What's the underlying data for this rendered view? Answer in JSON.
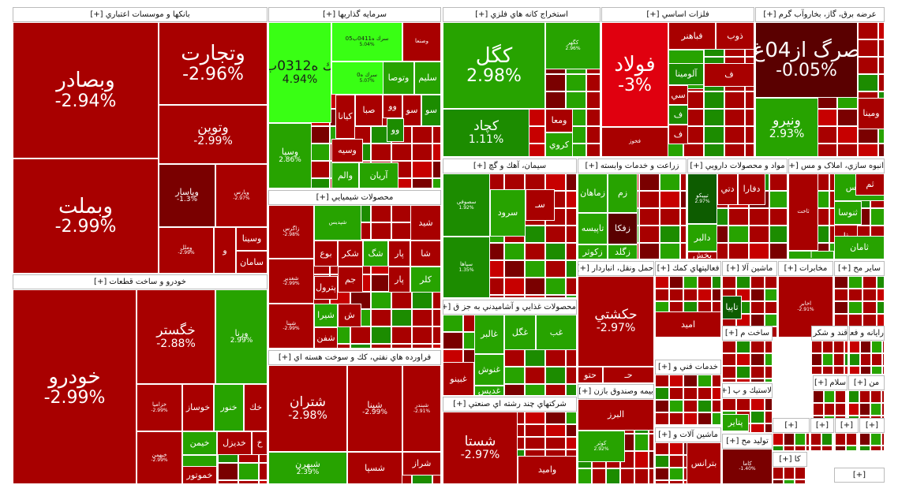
{
  "colors": {
    "deep_red": "#a80000",
    "red": "#c70000",
    "bright_red": "#e0000f",
    "dark_red": "#7a0000",
    "maroon": "#5a0000",
    "green": "#27a300",
    "mid_green": "#1c8c00",
    "dark_green": "#0d5c00",
    "lime": "#39ff14",
    "header_bg": "#ffffff"
  },
  "sectors": [
    {
      "id": "banks",
      "title": "بانکها و موسسات اعتباري [+]"
    },
    {
      "id": "invest",
      "title": "سرمايه گذاريها [+]"
    },
    {
      "id": "mining",
      "title": "استخراج كانه هاي فلزي [+]"
    },
    {
      "id": "metals",
      "title": "فلزات اساسي [+]"
    },
    {
      "id": "utilities",
      "title": "عرضه برق، گاز، بخاروآب گرم [+]"
    },
    {
      "id": "auto",
      "title": "خودرو و ساخت قطعات [+]"
    },
    {
      "id": "chemicals",
      "title": "محصولات شيميايي [+]"
    },
    {
      "id": "cement",
      "title": "سيمان، آهك و گچ [+]"
    },
    {
      "id": "agri",
      "title": "زراعت و خدمات وابسته [+]"
    },
    {
      "id": "pharma",
      "title": "مواد و محصولات دارويي [+]"
    },
    {
      "id": "realestate",
      "title": "انبوه سازي، املاک و مس [+]"
    },
    {
      "id": "refinery",
      "title": "فراورده هاي نفتي، كك و سوخت هسته اي [+]"
    },
    {
      "id": "food",
      "title": "محصولات غذايي و آشاميدني به جز ق [+]"
    },
    {
      "id": "transport",
      "title": "حمل ونقل، انباردار [+]"
    },
    {
      "id": "support",
      "title": "فعاليتهاي كمك [+]"
    },
    {
      "id": "machinery",
      "title": "ماشين آلا [+]"
    },
    {
      "id": "telecom",
      "title": "مخابرات [+]"
    },
    {
      "id": "other",
      "title": "ساير مح [+]"
    },
    {
      "id": "multi",
      "title": "شركتهاي چند رشته اي صنعتي [+]"
    },
    {
      "id": "tech",
      "title": "خدمات فني و [+]"
    },
    {
      "id": "fund",
      "title": "بيمه وصندوق بازن [+]"
    },
    {
      "id": "sugar",
      "title": "قند و شكر [+]"
    },
    {
      "id": "computer",
      "title": "رايانه و فعا [+]"
    },
    {
      "id": "manuf",
      "title": "ساخت م [+]"
    },
    {
      "id": "rubber",
      "title": "لاستيك و پ [+]"
    },
    {
      "id": "islam",
      "title": "سلام [+]"
    },
    {
      "id": "min2",
      "title": "من [+]"
    },
    {
      "id": "machine2",
      "title": "ماشين آلات و [+]"
    },
    {
      "id": "produce",
      "title": "توليد مح [+]"
    },
    {
      "id": "ka",
      "title": "كا [+]"
    },
    {
      "id": "s1",
      "title": "[+]"
    },
    {
      "id": "s2",
      "title": "[+]"
    },
    {
      "id": "s3",
      "title": "[+]"
    },
    {
      "id": "s4",
      "title": "[+]"
    },
    {
      "id": "s5",
      "title": "[+]"
    }
  ],
  "tiles": [
    {
      "name": "وبصادر",
      "pct": "-2.94%",
      "color": "deep_red",
      "size": "big"
    },
    {
      "name": "وتجارت",
      "pct": "-2.96%",
      "color": "deep_red",
      "size": "big"
    },
    {
      "name": "وتوين",
      "pct": "-2.99%",
      "color": "deep_red",
      "size": "med"
    },
    {
      "name": "وبملت",
      "pct": "-2.99%",
      "color": "deep_red",
      "size": "big"
    },
    {
      "name": "وپاسار",
      "pct": "-1.3%",
      "color": "dark_red",
      "size": "small"
    },
    {
      "name": "وپارس",
      "pct": "-2.97%",
      "color": "deep_red",
      "size": "tiny"
    },
    {
      "name": "وملل",
      "pct": "-2.99%",
      "color": "deep_red",
      "size": "tiny"
    },
    {
      "name": "و",
      "pct": "",
      "color": "deep_red",
      "size": "small"
    },
    {
      "name": "وسينا",
      "pct": "",
      "color": "deep_red",
      "size": "small"
    },
    {
      "name": "سامان",
      "pct": "",
      "color": "deep_red",
      "size": "small"
    },
    {
      "name": "سرك ه0312ب01",
      "pct": "4.94%",
      "color": "lime",
      "size": "med",
      "dark": true
    },
    {
      "name": "سرك ه0411ب05",
      "pct": "5.04%",
      "color": "lime",
      "size": "tiny",
      "dark": true
    },
    {
      "name": "سرك ه0",
      "pct": "5.07%",
      "color": "lime",
      "size": "tiny",
      "dark": true
    },
    {
      "name": "وصنعا",
      "pct": "",
      "color": "deep_red",
      "size": "tiny"
    },
    {
      "name": "وتوصا",
      "pct": "",
      "color": "green",
      "size": "small"
    },
    {
      "name": "سليم",
      "pct": "",
      "color": "green",
      "size": "small"
    },
    {
      "name": "وسپا",
      "pct": "2.86%",
      "color": "green",
      "size": "small"
    },
    {
      "name": "كيانا",
      "pct": "",
      "color": "deep_red",
      "size": "small"
    },
    {
      "name": "صبا",
      "pct": "",
      "color": "deep_red",
      "size": "small"
    },
    {
      "name": "وسيه",
      "pct": "",
      "color": "deep_red",
      "size": "small"
    },
    {
      "name": "وو",
      "pct": "",
      "color": "deep_red",
      "size": "small"
    },
    {
      "name": "سو",
      "pct": "",
      "color": "deep_red",
      "size": "small"
    },
    {
      "name": "وو",
      "pct": "",
      "color": "mid_green",
      "size": "small"
    },
    {
      "name": "سو",
      "pct": "",
      "color": "mid_green",
      "size": "small"
    },
    {
      "name": "آريان",
      "pct": "",
      "color": "green",
      "size": "small"
    },
    {
      "name": "والم",
      "pct": "",
      "color": "green",
      "size": "small"
    },
    {
      "name": "كگل",
      "pct": "2.98%",
      "color": "green",
      "size": "big"
    },
    {
      "name": "كگهر",
      "pct": "2.96%",
      "color": "green",
      "size": "tiny"
    },
    {
      "name": "كچاد",
      "pct": "1.11%",
      "color": "mid_green",
      "size": "med"
    },
    {
      "name": "ومعا",
      "pct": "",
      "color": "deep_red",
      "size": "small"
    },
    {
      "name": "كروي",
      "pct": "",
      "color": "green",
      "size": "small"
    },
    {
      "name": "فولاد",
      "pct": "-3%",
      "color": "bright_red",
      "size": "big"
    },
    {
      "name": "فباهنر",
      "pct": "",
      "color": "deep_red",
      "size": "small"
    },
    {
      "name": "ذوب",
      "pct": "",
      "color": "deep_red",
      "size": "small"
    },
    {
      "name": "فملي",
      "pct": "",
      "color": "green",
      "size": "small"
    },
    {
      "name": "آلومينا",
      "pct": "",
      "color": "mid_green",
      "size": "small"
    },
    {
      "name": "ف",
      "pct": "",
      "color": "deep_red",
      "size": "small"
    },
    {
      "name": "سي",
      "pct": "",
      "color": "deep_red",
      "size": "small"
    },
    {
      "name": "ف",
      "pct": "",
      "color": "mid_green",
      "size": "small"
    },
    {
      "name": "ف",
      "pct": "",
      "color": "deep_red",
      "size": "small"
    },
    {
      "name": "فخوز",
      "pct": "",
      "color": "deep_red",
      "size": "tiny"
    },
    {
      "name": "صرگ از04غ",
      "pct": "-0.05%",
      "color": "maroon",
      "size": "big"
    },
    {
      "name": "ونيرو",
      "pct": "2.93%",
      "color": "green",
      "size": "med"
    },
    {
      "name": "ومينا",
      "pct": "",
      "color": "deep_red",
      "size": "small"
    },
    {
      "name": "خودرو",
      "pct": "-2.99%",
      "color": "deep_red",
      "size": "big"
    },
    {
      "name": "خگستر",
      "pct": "-2.88%",
      "color": "deep_red",
      "size": "med"
    },
    {
      "name": "ورنا",
      "pct": "2.99%",
      "color": "green",
      "size": "small"
    },
    {
      "name": "خوساز",
      "pct": "",
      "color": "deep_red",
      "size": "small"
    },
    {
      "name": "خنور",
      "pct": "",
      "color": "green",
      "size": "small"
    },
    {
      "name": "خك",
      "pct": "",
      "color": "deep_red",
      "size": "small"
    },
    {
      "name": "خزاميا",
      "pct": "-2.99%",
      "color": "deep_red",
      "size": "tiny"
    },
    {
      "name": "خيمن",
      "pct": "",
      "color": "green",
      "size": "small"
    },
    {
      "name": "خديزل",
      "pct": "",
      "color": "deep_red",
      "size": "small"
    },
    {
      "name": "خ",
      "pct": "",
      "color": "deep_red",
      "size": "small"
    },
    {
      "name": "خبهمن",
      "pct": "-2.99%",
      "color": "deep_red",
      "size": "tiny"
    },
    {
      "name": "خريخت",
      "pct": "",
      "color": "green",
      "size": "small"
    },
    {
      "name": "خموتور",
      "pct": "",
      "color": "deep_red",
      "size": "small"
    },
    {
      "name": "زاگرس",
      "pct": "-2.98%",
      "color": "deep_red",
      "size": "tiny"
    },
    {
      "name": "شپديس",
      "pct": "",
      "color": "green",
      "size": "tiny"
    },
    {
      "name": "شيد",
      "pct": "",
      "color": "deep_red",
      "size": "small"
    },
    {
      "name": "بوع",
      "pct": "",
      "color": "deep_red",
      "size": "small"
    },
    {
      "name": "شكر",
      "pct": "",
      "color": "deep_red",
      "size": "small"
    },
    {
      "name": "شگ",
      "pct": "",
      "color": "green",
      "size": "small"
    },
    {
      "name": "پار",
      "pct": "",
      "color": "deep_red",
      "size": "small"
    },
    {
      "name": "شا",
      "pct": "",
      "color": "deep_red",
      "size": "small"
    },
    {
      "name": "پار",
      "pct": "",
      "color": "deep_red",
      "size": "small"
    },
    {
      "name": "كلر",
      "pct": "",
      "color": "green",
      "size": "small"
    },
    {
      "name": "پترول",
      "pct": "",
      "color": "deep_red",
      "size": "small"
    },
    {
      "name": "جم",
      "pct": "",
      "color": "deep_red",
      "size": "small"
    },
    {
      "name": "شپنا",
      "pct": "-2.99%",
      "color": "deep_red",
      "size": "tiny"
    },
    {
      "name": "شيرا",
      "pct": "",
      "color": "green",
      "size": "small"
    },
    {
      "name": "ش",
      "pct": "",
      "color": "deep_red",
      "size": "small"
    },
    {
      "name": "شغدير",
      "pct": "-2.99%",
      "color": "deep_red",
      "size": "tiny"
    },
    {
      "name": "شفن",
      "pct": "",
      "color": "deep_red",
      "size": "small"
    },
    {
      "name": "سصوفي",
      "pct": "1.92%",
      "color": "mid_green",
      "size": "tiny"
    },
    {
      "name": "سرود",
      "pct": "",
      "color": "green",
      "size": "small"
    },
    {
      "name": "سـ",
      "pct": "",
      "color": "deep_red",
      "size": "small"
    },
    {
      "name": "سپاها",
      "pct": "1.35%",
      "color": "mid_green",
      "size": "tiny"
    },
    {
      "name": "زماهان",
      "pct": "",
      "color": "green",
      "size": "small"
    },
    {
      "name": "زم",
      "pct": "",
      "color": "green",
      "size": "small"
    },
    {
      "name": "تاپيسه",
      "pct": "",
      "color": "green",
      "size": "small"
    },
    {
      "name": "زفكا",
      "pct": "",
      "color": "maroon",
      "size": "small"
    },
    {
      "name": "زكوثر",
      "pct": "",
      "color": "green",
      "size": "small"
    },
    {
      "name": "زگلد",
      "pct": "",
      "color": "green",
      "size": "small"
    },
    {
      "name": "تيپيكو",
      "pct": "2.97%",
      "color": "dark_green",
      "size": "tiny"
    },
    {
      "name": "دتي",
      "pct": "",
      "color": "deep_red",
      "size": "small"
    },
    {
      "name": "دفارا",
      "pct": "",
      "color": "deep_red",
      "size": "small"
    },
    {
      "name": "دالبر",
      "pct": "",
      "color": "green",
      "size": "small"
    },
    {
      "name": "پخش",
      "pct": "",
      "color": "deep_red",
      "size": "small"
    },
    {
      "name": "ثاخت",
      "pct": "",
      "color": "deep_red",
      "size": "tiny"
    },
    {
      "name": "تپرديس",
      "pct": "",
      "color": "green",
      "size": "small"
    },
    {
      "name": "ثم",
      "pct": "",
      "color": "deep_red",
      "size": "small"
    },
    {
      "name": "ثنوسا",
      "pct": "",
      "color": "green",
      "size": "small"
    },
    {
      "name": "ثا",
      "pct": "",
      "color": "deep_red",
      "size": "small"
    },
    {
      "name": "ثامان",
      "pct": "",
      "color": "green",
      "size": "small"
    },
    {
      "name": "آ",
      "pct": "",
      "color": "green",
      "size": "small"
    },
    {
      "name": "شتران",
      "pct": "-2.98%",
      "color": "deep_red",
      "size": "med"
    },
    {
      "name": "شپنا",
      "pct": "-2.99%",
      "color": "deep_red",
      "size": "small"
    },
    {
      "name": "شبندر",
      "pct": "-2.91%",
      "color": "deep_red",
      "size": "tiny"
    },
    {
      "name": "شبهرن",
      "pct": "2.39%",
      "color": "green",
      "size": "small"
    },
    {
      "name": "شسپا",
      "pct": "",
      "color": "deep_red",
      "size": "small"
    },
    {
      "name": "شراز",
      "pct": "",
      "color": "deep_red",
      "size": "small"
    },
    {
      "name": "غالبر",
      "pct": "",
      "color": "green",
      "size": "small"
    },
    {
      "name": "غگل",
      "pct": "",
      "color": "green",
      "size": "small"
    },
    {
      "name": "غب",
      "pct": "",
      "color": "green",
      "size": "small"
    },
    {
      "name": "غنوش",
      "pct": "",
      "color": "green",
      "size": "small"
    },
    {
      "name": "غديس",
      "pct": "",
      "color": "green",
      "size": "small"
    },
    {
      "name": "غبينو",
      "pct": "",
      "color": "deep_red",
      "size": "small"
    },
    {
      "name": "حكشتي",
      "pct": "-2.97%",
      "color": "deep_red",
      "size": "med"
    },
    {
      "name": "حتو",
      "pct": "",
      "color": "deep_red",
      "size": "small"
    },
    {
      "name": "حـ",
      "pct": "",
      "color": "deep_red",
      "size": "small"
    },
    {
      "name": "امید",
      "pct": "",
      "color": "deep_red",
      "size": "small"
    },
    {
      "name": "تاپيا",
      "pct": "",
      "color": "dark_green",
      "size": "small"
    },
    {
      "name": "شستا",
      "pct": "-2.97%",
      "color": "deep_red",
      "size": "med"
    },
    {
      "name": "واميد",
      "pct": "",
      "color": "deep_red",
      "size": "small"
    },
    {
      "name": "البرز",
      "pct": "",
      "color": "deep_red",
      "size": "small"
    },
    {
      "name": "كوثر",
      "pct": "2.92%",
      "color": "green",
      "size": "tiny"
    },
    {
      "name": "بترانس",
      "pct": "",
      "color": "deep_red",
      "size": "small"
    },
    {
      "name": "پتاير",
      "pct": "",
      "color": "green",
      "size": "small"
    },
    {
      "name": "پكوير",
      "pct": "",
      "color": "green",
      "size": "small"
    },
    {
      "name": "كاما",
      "pct": "-1.40%",
      "color": "dark_red",
      "size": "tiny"
    },
    {
      "name": "اخابر",
      "pct": "-2.91%",
      "color": "deep_red",
      "size": "tiny"
    }
  ]
}
